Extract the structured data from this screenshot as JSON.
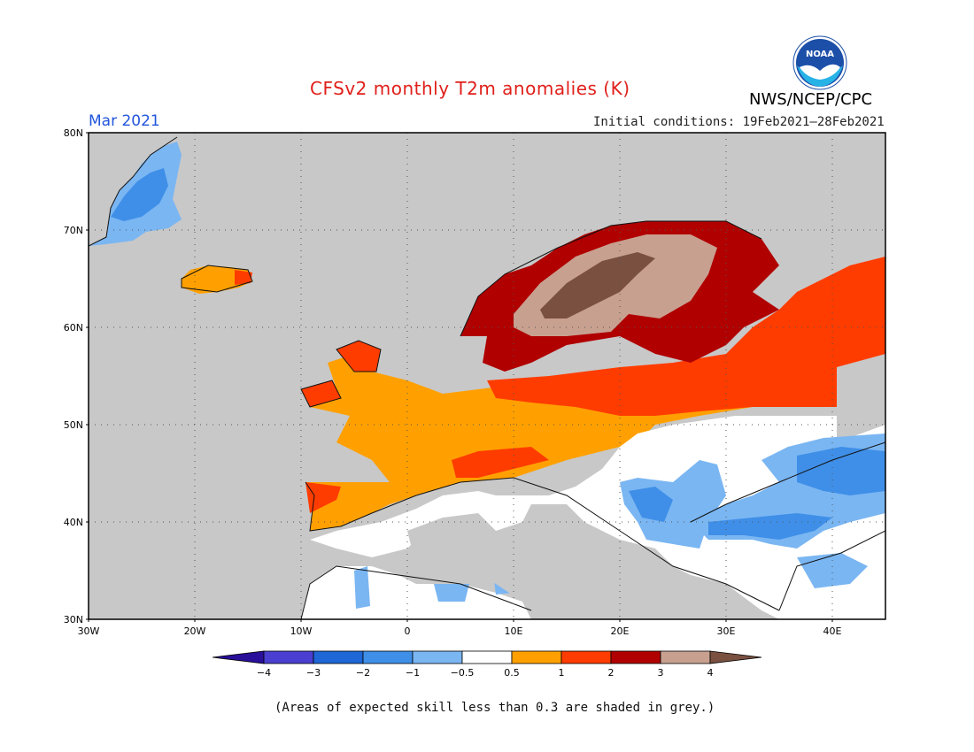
{
  "header": {
    "title": "CFSv2 monthly T2m anomalies (K)",
    "month": "Mar 2021",
    "initial_conditions": "Initial conditions: 19Feb2021–28Feb2021",
    "agency": "NWS/NCEP/CPC",
    "logo_text": "NOAA"
  },
  "map": {
    "lat_range": [
      30,
      80
    ],
    "lon_range": [
      -30,
      45
    ],
    "lat_ticks": [
      "30N",
      "40N",
      "50N",
      "60N",
      "70N",
      "80N"
    ],
    "lon_ticks": [
      "30W",
      "20W",
      "10W",
      "0",
      "10E",
      "20E",
      "30E",
      "40E"
    ],
    "grid": "dotted",
    "background_color": "#c8c8c8"
  },
  "legend": {
    "ticks": [
      "−4",
      "−3",
      "−2",
      "−1",
      "−0.5",
      "0.5",
      "1",
      "2",
      "3",
      "4"
    ],
    "colors": [
      "#2a0f9a",
      "#4a3fd1",
      "#1f66d6",
      "#3f8fe8",
      "#7ab6f2",
      "#ffffff",
      "#ffa000",
      "#ff3c00",
      "#b00000",
      "#c8a090",
      "#7a5040"
    ]
  },
  "footnote": "(Areas of expected skill less than 0.3 are shaded in grey.)"
}
